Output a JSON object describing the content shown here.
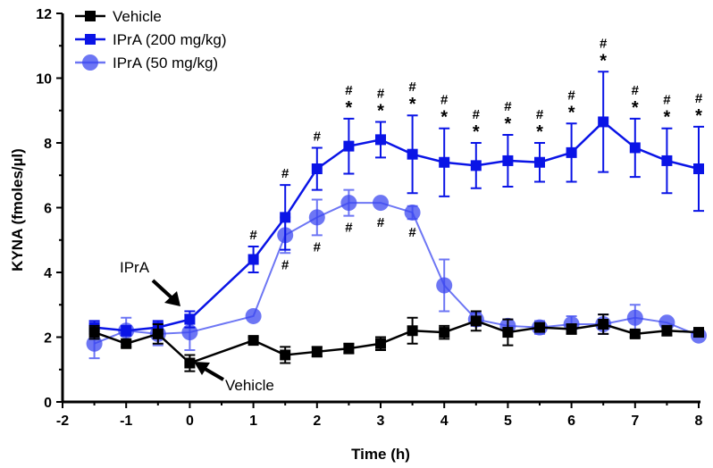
{
  "chart_data": {
    "type": "line",
    "xlabel": "Time (h)",
    "ylabel": "KYNA (fmoles/µl)",
    "xlim": [
      -2,
      8
    ],
    "ylim": [
      0,
      12
    ],
    "xticks": [
      -2,
      -1,
      0,
      1,
      2,
      3,
      4,
      5,
      6,
      7,
      8
    ],
    "yticks": [
      0,
      2,
      4,
      6,
      8,
      10,
      12
    ],
    "legend_position": "top-left",
    "x": [
      -1.5,
      -1,
      -0.5,
      0,
      1,
      1.5,
      2,
      2.5,
      3,
      3.5,
      4,
      4.5,
      5,
      5.5,
      6,
      6.5,
      7,
      7.5,
      8
    ],
    "series": [
      {
        "name": "Vehicle",
        "color": "#000000",
        "marker": "square",
        "values": [
          2.15,
          1.8,
          2.1,
          1.2,
          1.9,
          1.45,
          1.55,
          1.65,
          1.8,
          2.2,
          2.15,
          2.5,
          2.15,
          2.3,
          2.25,
          2.4,
          2.1,
          2.2,
          2.15
        ],
        "errors": [
          0.2,
          0.1,
          0.3,
          0.25,
          0.1,
          0.25,
          0.15,
          0.15,
          0.2,
          0.4,
          0.2,
          0.3,
          0.4,
          0.1,
          0.15,
          0.3,
          0.1,
          0.15,
          0.1
        ]
      },
      {
        "name": "IPrA (200 mg/kg)",
        "color": "#0a14e6",
        "marker": "square",
        "values": [
          2.3,
          2.2,
          2.3,
          2.55,
          4.4,
          5.7,
          7.2,
          7.9,
          8.1,
          7.65,
          7.4,
          7.3,
          7.45,
          7.4,
          7.7,
          8.65,
          7.85,
          7.45,
          7.2
        ],
        "errors": [
          0.2,
          0.15,
          0.2,
          0.25,
          0.4,
          1.0,
          0.65,
          0.85,
          0.55,
          1.2,
          1.05,
          0.7,
          0.8,
          0.6,
          0.9,
          1.55,
          0.9,
          1.0,
          1.3
        ]
      },
      {
        "name": "IPrA (50 mg/kg)",
        "color": "#3c48f0",
        "marker": "circle",
        "values": [
          1.8,
          2.2,
          2.1,
          2.15,
          2.65,
          5.15,
          5.7,
          6.15,
          6.15,
          5.85,
          3.6,
          2.55,
          2.35,
          2.3,
          2.4,
          2.4,
          2.6,
          2.45,
          2.05
        ],
        "errors": [
          0.45,
          0.4,
          0.35,
          0.55,
          0,
          0.55,
          0.55,
          0.4,
          0,
          0.2,
          0.8,
          0.2,
          0.2,
          0.2,
          0.25,
          0.3,
          0.4,
          0,
          0
        ]
      }
    ],
    "annotations_200": [
      {
        "x": 1,
        "text": "#"
      },
      {
        "x": 1.5,
        "text": "#"
      },
      {
        "x": 2,
        "text": "#"
      },
      {
        "x": 2.5,
        "text": "#*"
      },
      {
        "x": 3,
        "text": "#*"
      },
      {
        "x": 3.5,
        "text": "#*"
      },
      {
        "x": 4,
        "text": "#*"
      },
      {
        "x": 4.5,
        "text": "#*"
      },
      {
        "x": 5,
        "text": "#*"
      },
      {
        "x": 5.5,
        "text": "#*"
      },
      {
        "x": 6,
        "text": "#*"
      },
      {
        "x": 6.5,
        "text": "#*"
      },
      {
        "x": 7,
        "text": "#*"
      },
      {
        "x": 7.5,
        "text": "#*"
      },
      {
        "x": 8,
        "text": "#*"
      }
    ],
    "annotations_50": [
      {
        "x": 1.5,
        "text": "#"
      },
      {
        "x": 2,
        "text": "#"
      },
      {
        "x": 2.5,
        "text": "#"
      },
      {
        "x": 3,
        "text": "#"
      },
      {
        "x": 3.5,
        "text": "#"
      }
    ],
    "arrow_labels": [
      {
        "text": "IPrA",
        "x": 0,
        "y": 2.55
      },
      {
        "text": "Vehicle",
        "x": 0,
        "y": 1.2
      }
    ]
  }
}
